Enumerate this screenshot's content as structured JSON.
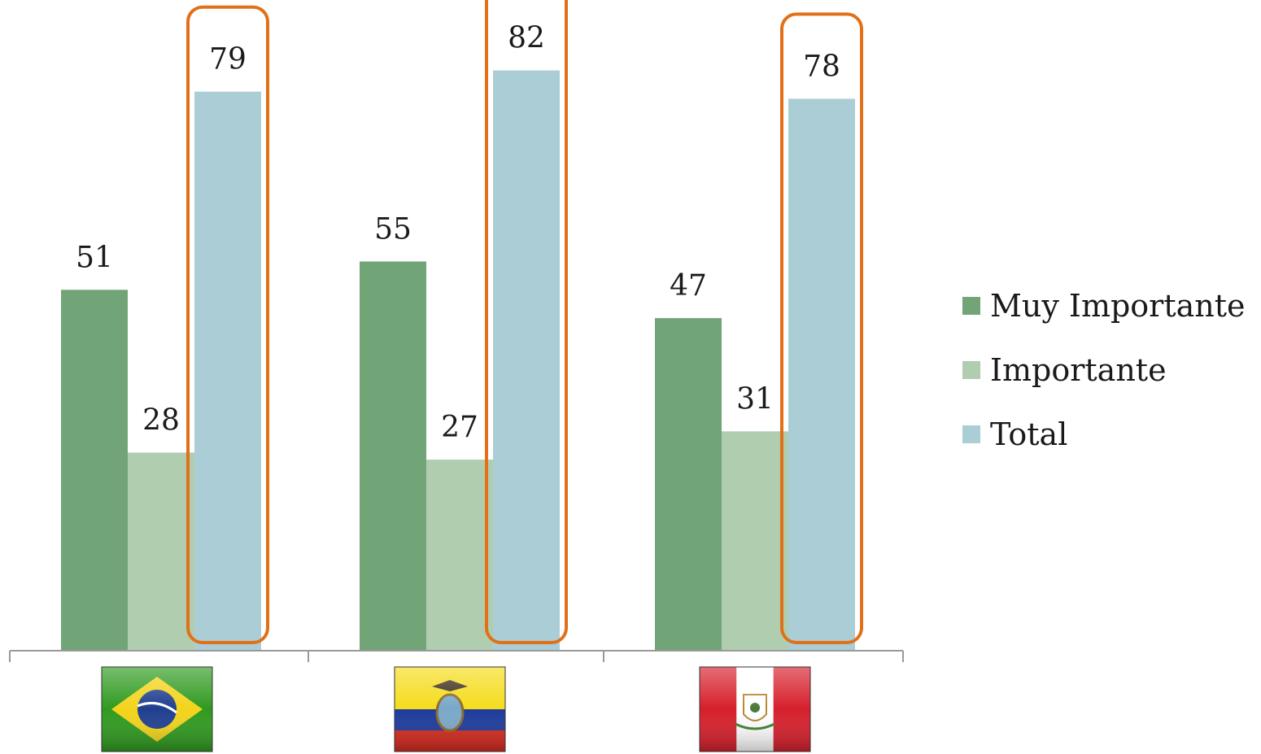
{
  "chart_data": {
    "type": "bar",
    "categories": [
      "Brasil",
      "Ecuador",
      "Perú"
    ],
    "category_icons": [
      "brazil-flag-icon",
      "ecuador-flag-icon",
      "peru-flag-icon"
    ],
    "series": [
      {
        "name": "Muy Importante",
        "color": "#71a476",
        "values": [
          51,
          55,
          47
        ]
      },
      {
        "name": "Importante",
        "color": "#b0cdb0",
        "values": [
          28,
          27,
          31
        ]
      },
      {
        "name": "Total",
        "color": "#abcdd6",
        "values": [
          79,
          82,
          78
        ]
      }
    ],
    "highlighted_series": "Total",
    "highlight_color": "#e27018",
    "ylim": [
      0,
      90
    ],
    "legend_position": "right",
    "grid": false,
    "axis_color": "#999999"
  }
}
